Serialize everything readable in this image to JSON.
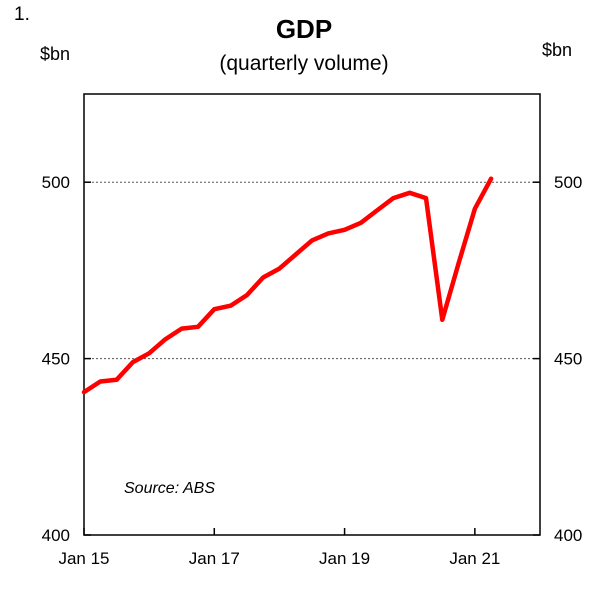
{
  "figure_number": "1.",
  "chart_data": {
    "type": "line",
    "title": "GDP",
    "subtitle": "(quarterly volume)",
    "ylabel_left": "$bn",
    "ylabel_right": "$bn",
    "ylim": [
      400,
      525
    ],
    "yticks": [
      400,
      450,
      500
    ],
    "gridlines_at": [
      450,
      500
    ],
    "grid_style": "dotted",
    "xticks": [
      {
        "label": "Jan 15",
        "t": 0
      },
      {
        "label": "Jan 17",
        "t": 8
      },
      {
        "label": "Jan 19",
        "t": 16
      },
      {
        "label": "Jan 21",
        "t": 24
      }
    ],
    "x_range_quarters": [
      0,
      28
    ],
    "annotation": "Source: ABS",
    "series": [
      {
        "color": "#ff0000",
        "points": [
          {
            "t": 0,
            "y": 440.5
          },
          {
            "t": 1,
            "y": 443.5
          },
          {
            "t": 2,
            "y": 444.0
          },
          {
            "t": 3,
            "y": 449.0
          },
          {
            "t": 4,
            "y": 451.5
          },
          {
            "t": 5,
            "y": 455.5
          },
          {
            "t": 6,
            "y": 458.5
          },
          {
            "t": 7,
            "y": 459.0
          },
          {
            "t": 8,
            "y": 464.0
          },
          {
            "t": 9,
            "y": 465.0
          },
          {
            "t": 10,
            "y": 468.0
          },
          {
            "t": 11,
            "y": 473.0
          },
          {
            "t": 12,
            "y": 475.5
          },
          {
            "t": 13,
            "y": 479.5
          },
          {
            "t": 14,
            "y": 483.5
          },
          {
            "t": 15,
            "y": 485.5
          },
          {
            "t": 16,
            "y": 486.5
          },
          {
            "t": 17,
            "y": 488.5
          },
          {
            "t": 18,
            "y": 492.0
          },
          {
            "t": 19,
            "y": 495.5
          },
          {
            "t": 20,
            "y": 497.0
          },
          {
            "t": 21,
            "y": 495.5
          },
          {
            "t": 22,
            "y": 461.0
          },
          {
            "t": 23,
            "y": 477.0
          },
          {
            "t": 24,
            "y": 492.5
          },
          {
            "t": 25,
            "y": 501.0
          }
        ]
      }
    ]
  }
}
